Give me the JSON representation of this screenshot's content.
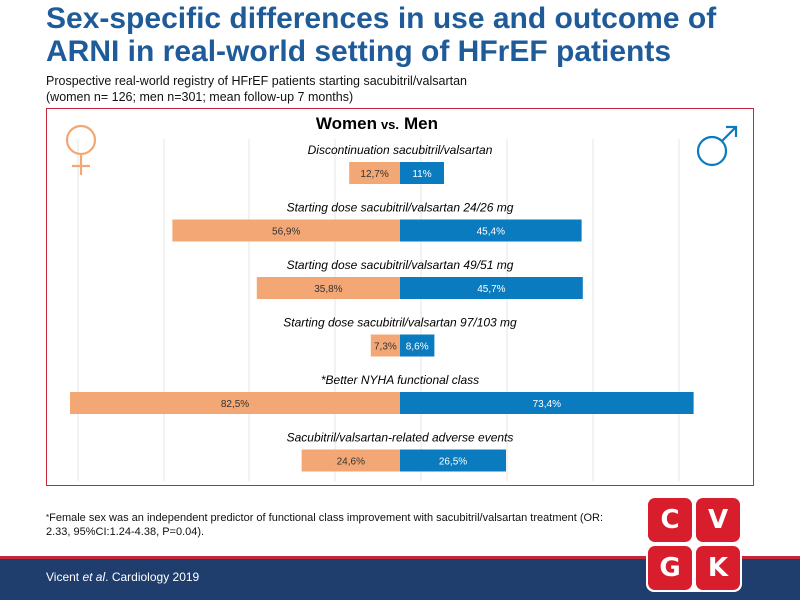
{
  "header": {
    "title": "Sex-specific differences in use and outcome of ARNI in real-world setting of HFrEF patients",
    "subtitle_line1": "Prospective real-world registry of HFrEF patients starting sacubitril/valsartan",
    "subtitle_line2": "(women n= 126; men n=301; mean follow-up 7 months)"
  },
  "chart_data": {
    "type": "bar",
    "orientation": "horizontal-diverging",
    "title_left": "Women",
    "title_mid": "vs.",
    "title_right": "Men",
    "series": [
      {
        "name": "Women",
        "color": "#f3a774",
        "direction": "left"
      },
      {
        "name": "Men",
        "color": "#0a7bbf",
        "direction": "right"
      }
    ],
    "categories": [
      "Discontinuation sacubitril/valsartan",
      "Starting dose sacubitril/valsartan 24/26 mg",
      "Starting dose sacubitril/valsartan 49/51 mg",
      "Starting dose sacubitril/valsartan 97/103 mg",
      "*Better NYHA functional class",
      "Sacubitril/valsartan-related adverse events"
    ],
    "women_values": [
      12.7,
      56.9,
      35.8,
      7.3,
      82.5,
      24.6
    ],
    "men_values": [
      11,
      45.4,
      45.7,
      8.6,
      73.4,
      26.5
    ],
    "women_labels": [
      "12,7%",
      "56,9%",
      "35,8%",
      "7,3%",
      "82,5%",
      "24,6%"
    ],
    "men_labels": [
      "11%",
      "45,4%",
      "45,7%",
      "8,6%",
      "73,4%",
      "26,5%"
    ],
    "xlim": [
      0,
      85
    ],
    "units": "%"
  },
  "footnote": {
    "asterisk": "*",
    "text": "Female sex was an independent predictor of functional class improvement with sacubitril/valsartan treatment (OR: 2.33, 95%CI:1.24-4.38, P=0.04)."
  },
  "citation": {
    "authors_pre": "Vicent ",
    "etal": "et al",
    "rest": ". Cardiology 2019"
  },
  "logo": {
    "letters": [
      "C",
      "V",
      "G",
      "K"
    ]
  }
}
